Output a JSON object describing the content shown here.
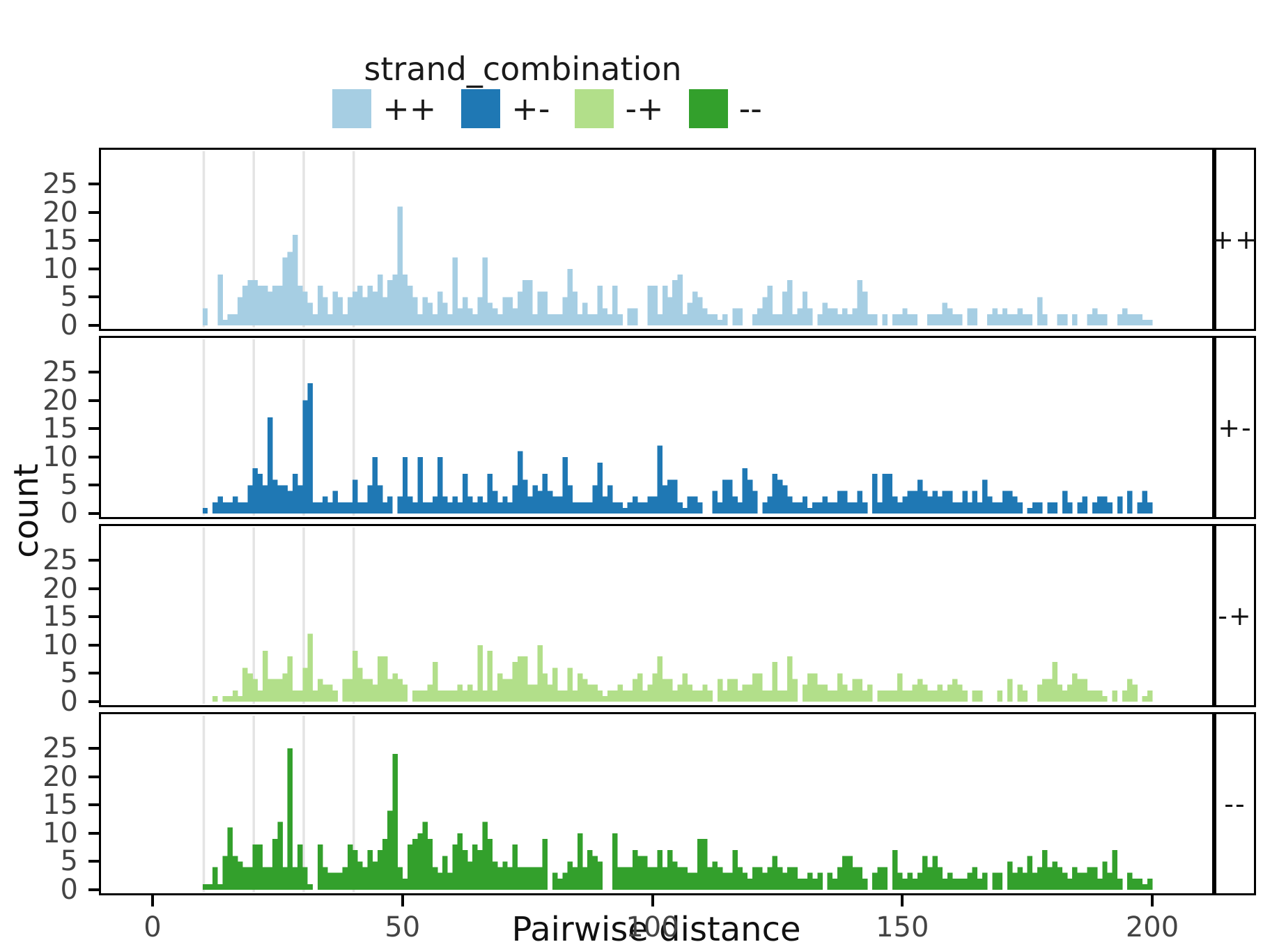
{
  "legend": {
    "title": "strand_combination",
    "items": [
      {
        "label": "++",
        "color": "#a6cee3"
      },
      {
        "label": "+-",
        "color": "#1f78b4"
      },
      {
        "label": "-+",
        "color": "#b2df8a"
      },
      {
        "label": "--",
        "color": "#33a02c"
      }
    ]
  },
  "axes": {
    "x_title": "Pairwise distance",
    "y_title": "count",
    "x_ticks": [
      0,
      50,
      100,
      150,
      200
    ],
    "y_ticks": [
      0,
      5,
      10,
      15,
      20,
      25
    ],
    "x_gridlines": [
      10,
      20,
      30,
      40
    ],
    "gridline_color": "#e4e4e4",
    "tick_label_color": "#444444",
    "panel_border_color": "#000000"
  },
  "chart_data": {
    "type": "bar",
    "subtype": "faceted-histogram",
    "title": "",
    "xlabel": "Pairwise distance",
    "ylabel": "count",
    "xlim": [
      -10,
      212
    ],
    "ylim": [
      0,
      25.5
    ],
    "bin_start": 10,
    "bin_width": 1,
    "legend_position": "top",
    "grid": "vertical-only",
    "facets": [
      {
        "label": "++",
        "color": "#a6cee3",
        "values": [
          3,
          0,
          0,
          9,
          1,
          2,
          2,
          5,
          7,
          8,
          8,
          7,
          7,
          6,
          7,
          7,
          12,
          13,
          16,
          7,
          6,
          4,
          2,
          7,
          5,
          2,
          6,
          5,
          2,
          5,
          6,
          7,
          5,
          7,
          6,
          9,
          5,
          8,
          9,
          21,
          9,
          7,
          5,
          2,
          5,
          4,
          2,
          6,
          4,
          2,
          12,
          3,
          5,
          3,
          2,
          5,
          12,
          4,
          3,
          2,
          5,
          5,
          3,
          6,
          8,
          8,
          2,
          6,
          6,
          2,
          2,
          2,
          5,
          10,
          6,
          2,
          4,
          2,
          2,
          7,
          3,
          2,
          7,
          2,
          0,
          3,
          3,
          0,
          0,
          7,
          7,
          2,
          7,
          5,
          8,
          9,
          2,
          4,
          6,
          5,
          3,
          2,
          2,
          1,
          2,
          0,
          3,
          3,
          0,
          0,
          2,
          3,
          5,
          7,
          2,
          2,
          6,
          8,
          2,
          3,
          6,
          3,
          0,
          2,
          4,
          3,
          3,
          2,
          3,
          2,
          3,
          8,
          6,
          2,
          2,
          0,
          2,
          0,
          2,
          2,
          3,
          2,
          2,
          0,
          0,
          2,
          2,
          2,
          4,
          3,
          2,
          2,
          0,
          3,
          3,
          0,
          0,
          2,
          3,
          2,
          3,
          2,
          2,
          3,
          2,
          2,
          0,
          5,
          2,
          0,
          0,
          2,
          2,
          0,
          2,
          0,
          0,
          2,
          3,
          2,
          2,
          0,
          0,
          2,
          3,
          2,
          2,
          2,
          1,
          1
        ]
      },
      {
        "label": "+-",
        "color": "#1f78b4",
        "values": [
          1,
          0,
          2,
          3,
          2,
          2,
          3,
          2,
          2,
          5,
          8,
          7,
          5,
          17,
          6,
          5,
          5,
          4,
          7,
          5,
          20,
          23,
          2,
          2,
          3,
          2,
          4,
          2,
          2,
          2,
          6,
          2,
          2,
          5,
          10,
          5,
          2,
          3,
          0,
          3,
          10,
          3,
          2,
          10,
          2,
          2,
          3,
          10,
          3,
          2,
          3,
          2,
          7,
          3,
          2,
          3,
          2,
          7,
          4,
          2,
          3,
          2,
          5,
          11,
          6,
          3,
          5,
          4,
          7,
          4,
          3,
          3,
          10,
          5,
          2,
          2,
          2,
          2,
          5,
          9,
          3,
          5,
          2,
          2,
          1,
          2,
          3,
          2,
          2,
          3,
          3,
          12,
          5,
          6,
          6,
          2,
          1,
          3,
          3,
          2,
          0,
          0,
          4,
          2,
          6,
          6,
          3,
          2,
          8,
          6,
          4,
          0,
          2,
          3,
          7,
          6,
          5,
          3,
          2,
          2,
          3,
          1,
          2,
          2,
          3,
          2,
          2,
          4,
          4,
          2,
          2,
          4,
          2,
          0,
          7,
          2,
          7,
          7,
          3,
          2,
          3,
          4,
          4,
          6,
          4,
          3,
          4,
          3,
          4,
          4,
          2,
          2,
          4,
          2,
          4,
          2,
          6,
          3,
          2,
          2,
          4,
          4,
          3,
          2,
          0,
          1,
          2,
          2,
          0,
          2,
          2,
          0,
          4,
          2,
          0,
          2,
          3,
          0,
          2,
          3,
          3,
          2,
          0,
          3,
          0,
          4,
          0,
          2,
          4,
          2
        ]
      },
      {
        "label": "-+",
        "color": "#b2df8a",
        "values": [
          0,
          0,
          1,
          0,
          1,
          1,
          2,
          1,
          6,
          5,
          4,
          2,
          9,
          4,
          4,
          4,
          5,
          8,
          2,
          2,
          6,
          12,
          2,
          4,
          3,
          3,
          2,
          0,
          4,
          4,
          9,
          6,
          4,
          4,
          3,
          8,
          8,
          4,
          5,
          4,
          3,
          0,
          2,
          2,
          2,
          3,
          7,
          2,
          2,
          2,
          2,
          3,
          2,
          3,
          2,
          10,
          2,
          9,
          2,
          5,
          4,
          4,
          7,
          8,
          8,
          3,
          3,
          10,
          5,
          3,
          6,
          2,
          2,
          6,
          2,
          5,
          4,
          3,
          3,
          2,
          1,
          2,
          2,
          3,
          2,
          2,
          4,
          5,
          2,
          3,
          5,
          8,
          4,
          4,
          2,
          3,
          5,
          3,
          2,
          2,
          3,
          2,
          0,
          4,
          2,
          4,
          4,
          2,
          3,
          3,
          5,
          5,
          2,
          2,
          7,
          2,
          2,
          8,
          4,
          0,
          3,
          5,
          5,
          3,
          3,
          2,
          2,
          5,
          3,
          2,
          4,
          4,
          2,
          3,
          0,
          2,
          2,
          2,
          2,
          5,
          2,
          2,
          3,
          4,
          3,
          2,
          2,
          3,
          2,
          3,
          4,
          3,
          2,
          0,
          2,
          2,
          0,
          0,
          0,
          2,
          0,
          4,
          0,
          3,
          2,
          0,
          0,
          3,
          4,
          4,
          7,
          3,
          2,
          3,
          5,
          4,
          4,
          2,
          2,
          2,
          1,
          0,
          2,
          0,
          2,
          4,
          3,
          0,
          1,
          2
        ]
      },
      {
        "label": "--",
        "color": "#33a02c",
        "values": [
          1,
          1,
          4,
          1,
          6,
          11,
          6,
          5,
          4,
          4,
          8,
          8,
          4,
          4,
          9,
          12,
          4,
          25,
          4,
          8,
          4,
          1,
          0,
          8,
          4,
          3,
          3,
          3,
          4,
          8,
          7,
          5,
          4,
          7,
          5,
          7,
          9,
          14,
          24,
          4,
          2,
          8,
          9,
          10,
          12,
          9,
          4,
          3,
          6,
          3,
          8,
          10,
          7,
          5,
          8,
          7,
          12,
          9,
          5,
          4,
          5,
          4,
          8,
          4,
          4,
          4,
          4,
          4,
          9,
          0,
          3,
          2,
          3,
          5,
          4,
          10,
          4,
          7,
          6,
          5,
          0,
          0,
          10,
          4,
          4,
          4,
          7,
          6,
          6,
          4,
          4,
          7,
          4,
          7,
          5,
          4,
          4,
          3,
          3,
          9,
          9,
          4,
          5,
          4,
          3,
          3,
          7,
          4,
          3,
          2,
          4,
          4,
          3,
          4,
          6,
          4,
          3,
          4,
          4,
          2,
          2,
          3,
          2,
          3,
          0,
          3,
          2,
          4,
          6,
          6,
          4,
          4,
          2,
          0,
          3,
          4,
          4,
          0,
          7,
          3,
          2,
          3,
          2,
          3,
          6,
          4,
          6,
          4,
          2,
          3,
          2,
          2,
          2,
          3,
          4,
          2,
          3,
          0,
          3,
          3,
          0,
          5,
          3,
          4,
          3,
          6,
          3,
          4,
          7,
          4,
          5,
          4,
          3,
          2,
          4,
          3,
          3,
          4,
          4,
          2,
          5,
          3,
          7,
          2,
          0,
          3,
          2,
          2,
          1,
          2
        ]
      }
    ]
  }
}
